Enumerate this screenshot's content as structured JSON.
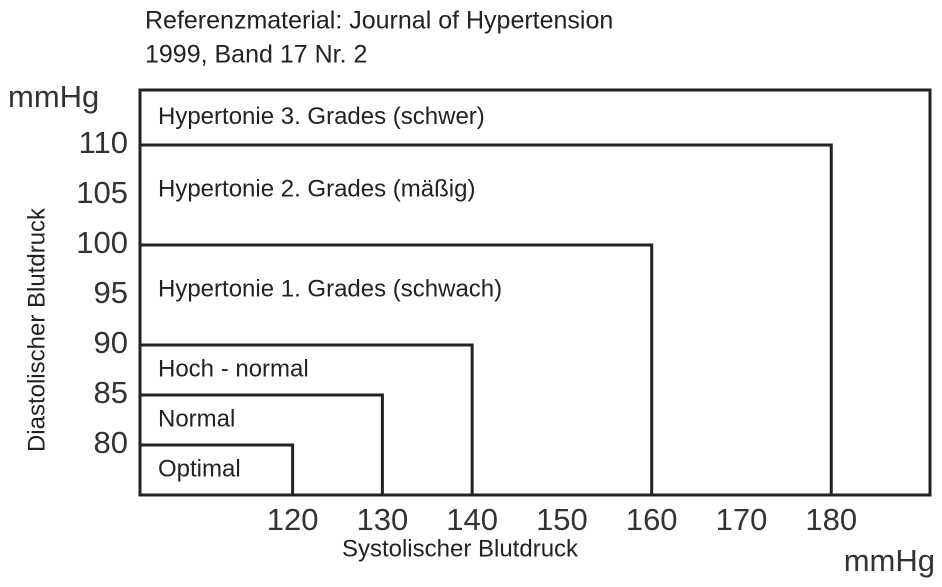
{
  "chart_data": {
    "type": "threshold-regions",
    "title": "Referenzmaterial: Journal of Hypertension",
    "subtitle": "1999, Band 17 Nr. 2",
    "x_label": "Systolischer Blutdruck",
    "y_label": "Diastolischer Blutdruck",
    "x_unit": "mmHg",
    "y_unit": "mmHg",
    "xlim": [
      103,
      191
    ],
    "ylim": [
      75,
      115.5
    ],
    "xticks": [
      120,
      130,
      140,
      150,
      160,
      170,
      180
    ],
    "yticks": [
      80,
      85,
      90,
      95,
      100,
      105,
      110
    ],
    "color": "#222222",
    "regions": [
      {
        "name": "Optimal",
        "x": 120,
        "y": 80
      },
      {
        "name": "Normal",
        "x": 130,
        "y": 85
      },
      {
        "name": "Hoch - normal",
        "x": 140,
        "y": 90
      },
      {
        "name": "Hypertonie 1. Grades (schwach)",
        "x": 160,
        "y": 100
      },
      {
        "name": "Hypertonie 2. Grades (mäßig)",
        "x": 180,
        "y": 110
      },
      {
        "name": "Hypertonie 3. Grades (schwer)"
      }
    ]
  }
}
